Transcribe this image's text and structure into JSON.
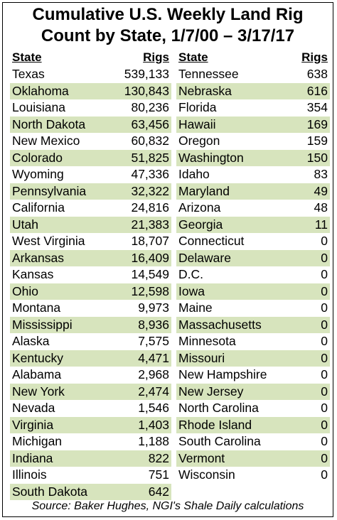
{
  "title_line1": "Cumulative U.S. Weekly Land Rig",
  "title_line2": "Count by State, 1/7/00 – 3/17/17",
  "header_state": "State",
  "header_rigs": "Rigs",
  "source": "Source: Baker Hughes, NGI's Shale Daily calculations",
  "row_shade_color": "#d7e4bd",
  "chart_data": {
    "type": "table",
    "columns": [
      "State",
      "Rigs"
    ],
    "left_column": [
      {
        "state": "Texas",
        "rigs": "539,133"
      },
      {
        "state": "Oklahoma",
        "rigs": "130,843"
      },
      {
        "state": "Louisiana",
        "rigs": "80,236"
      },
      {
        "state": "North Dakota",
        "rigs": "63,456"
      },
      {
        "state": "New Mexico",
        "rigs": "60,832"
      },
      {
        "state": "Colorado",
        "rigs": "51,825"
      },
      {
        "state": "Wyoming",
        "rigs": "47,336"
      },
      {
        "state": "Pennsylvania",
        "rigs": "32,322"
      },
      {
        "state": "California",
        "rigs": "24,816"
      },
      {
        "state": "Utah",
        "rigs": "21,383"
      },
      {
        "state": "West Virginia",
        "rigs": "18,707"
      },
      {
        "state": "Arkansas",
        "rigs": "16,409"
      },
      {
        "state": "Kansas",
        "rigs": "14,549"
      },
      {
        "state": "Ohio",
        "rigs": "12,598"
      },
      {
        "state": "Montana",
        "rigs": "9,973"
      },
      {
        "state": "Mississippi",
        "rigs": "8,936"
      },
      {
        "state": "Alaska",
        "rigs": "7,575"
      },
      {
        "state": "Kentucky",
        "rigs": "4,471"
      },
      {
        "state": "Alabama",
        "rigs": "2,968"
      },
      {
        "state": "New York",
        "rigs": "2,474"
      },
      {
        "state": "Nevada",
        "rigs": "1,546"
      },
      {
        "state": "Virginia",
        "rigs": "1,403"
      },
      {
        "state": "Michigan",
        "rigs": "1,188"
      },
      {
        "state": "Indiana",
        "rigs": "822"
      },
      {
        "state": "Illinois",
        "rigs": "751"
      },
      {
        "state": "South Dakota",
        "rigs": "642"
      }
    ],
    "right_column": [
      {
        "state": "Tennessee",
        "rigs": "638"
      },
      {
        "state": "Nebraska",
        "rigs": "616"
      },
      {
        "state": "Florida",
        "rigs": "354"
      },
      {
        "state": "Hawaii",
        "rigs": "169"
      },
      {
        "state": "Oregon",
        "rigs": "159"
      },
      {
        "state": "Washington",
        "rigs": "150"
      },
      {
        "state": "Idaho",
        "rigs": "83"
      },
      {
        "state": "Maryland",
        "rigs": "49"
      },
      {
        "state": "Arizona",
        "rigs": "48"
      },
      {
        "state": "Georgia",
        "rigs": "11"
      },
      {
        "state": "Connecticut",
        "rigs": "0"
      },
      {
        "state": "Delaware",
        "rigs": "0"
      },
      {
        "state": "D.C.",
        "rigs": "0"
      },
      {
        "state": "Iowa",
        "rigs": "0"
      },
      {
        "state": "Maine",
        "rigs": "0"
      },
      {
        "state": "Massachusetts",
        "rigs": "0"
      },
      {
        "state": "Minnesota",
        "rigs": "0"
      },
      {
        "state": "Missouri",
        "rigs": "0"
      },
      {
        "state": "New Hampshire",
        "rigs": "0"
      },
      {
        "state": "New Jersey",
        "rigs": "0"
      },
      {
        "state": "North Carolina",
        "rigs": "0"
      },
      {
        "state": "Rhode Island",
        "rigs": "0"
      },
      {
        "state": "South Carolina",
        "rigs": "0"
      },
      {
        "state": "Vermont",
        "rigs": "0"
      },
      {
        "state": "Wisconsin",
        "rigs": "0"
      }
    ]
  }
}
